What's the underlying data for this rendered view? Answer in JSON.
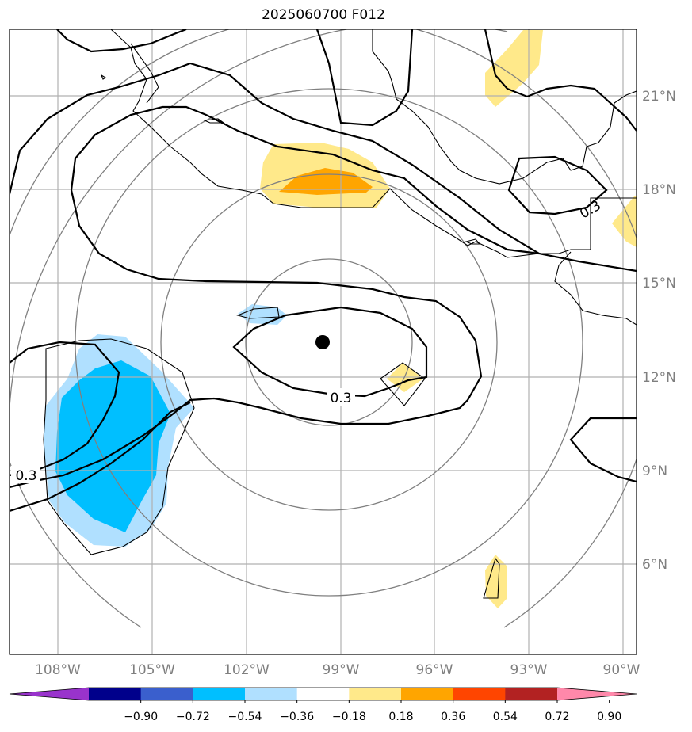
{
  "title": "2025060700 F012",
  "colors": {
    "ocean": "#ffffff",
    "frame": "#000000",
    "grid": "#b0b0b0",
    "range_rings": "#808080",
    "coastline": "#000000",
    "contour": "#000000",
    "center_marker": "#000000"
  },
  "lon_ticks": [
    "108°W",
    "105°W",
    "102°W",
    "99°W",
    "96°W",
    "93°W",
    "90°W"
  ],
  "lat_ticks": [
    "21°N",
    "18°N",
    "15°N",
    "12°N",
    "9°N",
    "6°N"
  ],
  "contour_labels": [
    "0.3",
    "0.3",
    "0.3"
  ],
  "storm_center": {
    "lon": -99.6,
    "lat": 12.9
  },
  "colorbar": {
    "ticks": [
      "−0.90",
      "−0.72",
      "−0.54",
      "−0.36",
      "−0.18",
      "0.18",
      "0.36",
      "0.54",
      "0.72",
      "0.90"
    ],
    "colors": [
      "#9933cc",
      "#00008b",
      "#3a5fcd",
      "#00bfff",
      "#b0e0ff",
      "#ffffff",
      "#ffe98a",
      "#ffa500",
      "#ff4500",
      "#b22222",
      "#ff88aa"
    ]
  }
}
